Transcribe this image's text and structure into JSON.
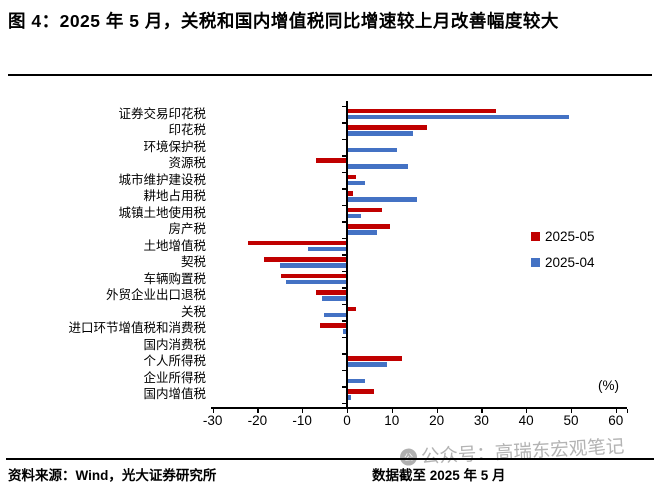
{
  "title": "图 4：2025 年 5 月，关税和国内增值税同比增速较上月改善幅度较大",
  "chart_data": {
    "type": "bar",
    "orientation": "horizontal",
    "unit_label": "(%)",
    "categories": [
      "证券交易印花税",
      "印花税",
      "环境保护税",
      "资源税",
      "城市维护建设税",
      "耕地占用税",
      "城镇土地使用税",
      "房产税",
      "土地增值税",
      "契税",
      "车辆购置税",
      "外贸企业出口退税",
      "关税",
      "进口环节增值税和消费税",
      "国内消费税",
      "个人所得税",
      "企业所得税",
      "国内增值税"
    ],
    "series": [
      {
        "name": "2025-05",
        "color": "#C00000",
        "values": [
          33.2,
          17.8,
          0,
          -7.0,
          2.1,
          1.3,
          7.8,
          9.5,
          -22.1,
          -18.6,
          -14.7,
          -7.0,
          2.0,
          -6.1,
          0.3,
          12.2,
          0,
          6.1
        ]
      },
      {
        "name": "2025-04",
        "color": "#4472C4",
        "values": [
          49.6,
          14.8,
          11.1,
          13.6,
          4.1,
          15.7,
          3.1,
          6.7,
          -8.6,
          -15.0,
          -13.6,
          -5.6,
          -5.1,
          -0.9,
          0.2,
          9.0,
          4.0,
          0.8
        ]
      }
    ],
    "xlim": [
      -30,
      60
    ],
    "xticks": [
      -30,
      -20,
      -10,
      0,
      10,
      20,
      30,
      40,
      50,
      60
    ],
    "grid": false,
    "legend_position": "middle-right"
  },
  "footer": {
    "source": "资料来源：Wind，光大证券研究所",
    "cutoff": "数据截至 2025 年 5 月"
  },
  "watermark": {
    "text": "公众号：高瑞东宏观笔记",
    "logo_glyph": "公"
  }
}
